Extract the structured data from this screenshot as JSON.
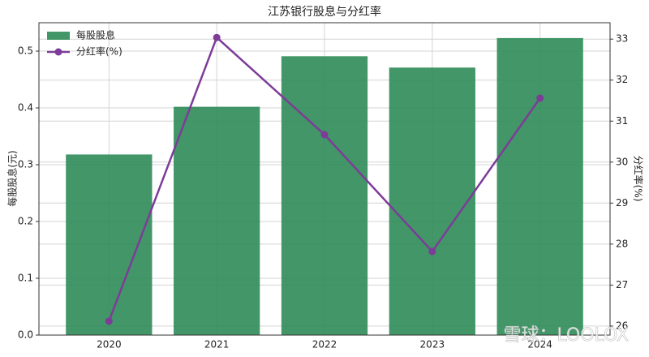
{
  "chart_data": {
    "type": "bar_line",
    "title": "江苏银行股息与分红率",
    "categories": [
      "2020",
      "2021",
      "2022",
      "2023",
      "2024"
    ],
    "series": [
      {
        "name": "每股股息",
        "type": "bar",
        "color": "#2e8b57",
        "values": [
          0.318,
          0.402,
          0.491,
          0.471,
          0.523
        ]
      },
      {
        "name": "分红率(%)",
        "type": "line",
        "axis": "y2",
        "color": "#7d3c98",
        "values": [
          26.12,
          33.04,
          30.67,
          27.82,
          31.56
        ]
      }
    ],
    "ylabel": "每股股息(元)",
    "y2label": "分红率(%)",
    "ylim": [
      0,
      0.55
    ],
    "yticks": [
      {
        "value": 0,
        "label": "0.0"
      },
      0.1,
      0.2,
      0.3,
      0.4,
      0.5
    ],
    "y2lim": [
      25.78,
      33.4
    ],
    "y2ticks": [
      26,
      27,
      28,
      29,
      30,
      31,
      32,
      33
    ],
    "grid": true,
    "legend": "upper left",
    "watermark": "雪球：LOOLOX"
  }
}
